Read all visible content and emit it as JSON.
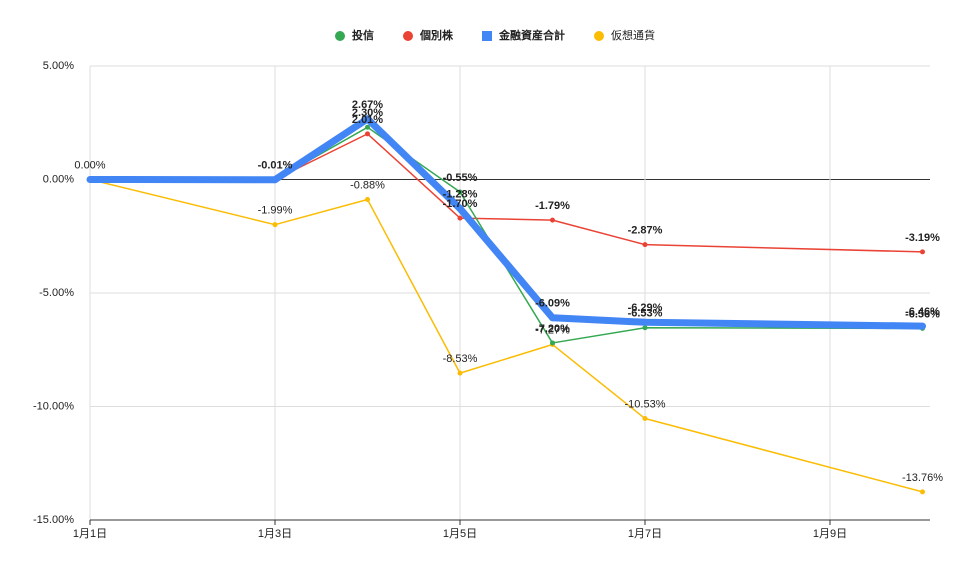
{
  "chart_data": {
    "type": "line",
    "x": [
      1,
      3,
      4,
      5,
      6,
      7,
      10
    ],
    "xlim": [
      1,
      10
    ],
    "xticks": [
      {
        "value": 1,
        "label": "1月1日"
      },
      {
        "value": 3,
        "label": "1月3日"
      },
      {
        "value": 5,
        "label": "1月5日"
      },
      {
        "value": 7,
        "label": "1月7日"
      },
      {
        "value": 9,
        "label": "1月9日"
      }
    ],
    "ylim": [
      -15,
      5
    ],
    "yticks": [
      {
        "value": -15,
        "label": "-15.00%"
      },
      {
        "value": -10,
        "label": "-10.00%"
      },
      {
        "value": -5,
        "label": "-5.00%"
      },
      {
        "value": 0,
        "label": "0.00%"
      },
      {
        "value": 5,
        "label": "5.00%"
      }
    ],
    "grid": true,
    "legend": "top",
    "series": [
      {
        "name": "投信",
        "color": "#34a853",
        "values": [
          0,
          -0.01,
          2.3,
          -0.55,
          -7.2,
          -6.53,
          -6.56
        ],
        "value_labels": [
          "0.00%",
          "-0.01%",
          "2.30%",
          "-0.55%",
          "-7.20%",
          "-6.53%",
          "-6.56%"
        ]
      },
      {
        "name": "個別株",
        "color": "#ea4335",
        "values": [
          0,
          0,
          2.01,
          -1.7,
          -1.79,
          -2.87,
          -3.19
        ],
        "value_labels": [
          "0.00%",
          "0.00%",
          "2.01%",
          "-1.70%",
          "-1.79%",
          "-2.87%",
          "-3.19%"
        ]
      },
      {
        "name": "金融資産合計",
        "color": "#4285f4",
        "values": [
          0,
          -0.01,
          2.67,
          -1.28,
          -6.09,
          -6.29,
          -6.46
        ],
        "value_labels": [
          "0.00%",
          "-0.01%",
          "2.67%",
          "-1.28%",
          "-6.09%",
          "-6.29%",
          "-6.46%"
        ]
      },
      {
        "name": "仮想通貨",
        "color": "#fbbc04",
        "values": [
          0,
          -1.99,
          -0.88,
          -8.53,
          -7.27,
          -10.53,
          -13.76
        ],
        "value_labels": [
          "0.00%",
          "-1.99%",
          "-0.88%",
          "-8.53%",
          "-7.27%",
          "-10.53%",
          "-13.76%"
        ]
      }
    ]
  }
}
